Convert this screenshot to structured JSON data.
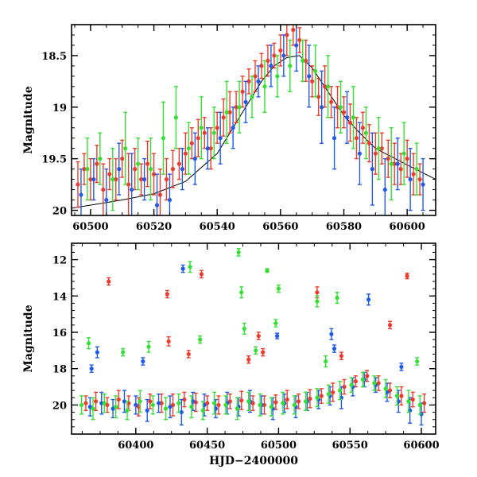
{
  "chart_data": [
    {
      "type": "scatter",
      "title": "",
      "xlabel": "",
      "ylabel": "Magnitude",
      "xlim": [
        60494,
        60609
      ],
      "ylim": [
        20.05,
        18.2
      ],
      "y_inverted": true,
      "x_ticks": [
        60500,
        60520,
        60540,
        60560,
        60580,
        60600
      ],
      "x_tick_labels": [
        "60500",
        "60520",
        "60540",
        "60560",
        "60580",
        "60600"
      ],
      "y_ticks": [
        18.5,
        19,
        19.5,
        20
      ],
      "y_tick_labels": [
        "18.5",
        "19",
        "19.5",
        "20"
      ],
      "model_curve": {
        "color": "#000000",
        "x": [
          60494,
          60500,
          60510,
          60520,
          60530,
          60540,
          60548,
          60554,
          60558,
          60562,
          60566,
          60570,
          60575,
          60580,
          60585,
          60590,
          60600,
          60609
        ],
        "y": [
          19.98,
          19.95,
          19.9,
          19.84,
          19.72,
          19.45,
          19.05,
          18.75,
          18.6,
          18.52,
          18.5,
          18.62,
          18.85,
          19.08,
          19.25,
          19.4,
          19.56,
          19.7
        ]
      },
      "series": [
        {
          "name": "",
          "color": "#ee3b2b",
          "x": [
            60496,
            60498,
            60500,
            60502,
            60504,
            60506,
            60508,
            60510,
            60512,
            60514,
            60516,
            60518,
            60520,
            60522,
            60524,
            60526,
            60528,
            60530,
            60532,
            60534,
            60536,
            60538,
            60540,
            60542,
            60544,
            60546,
            60548,
            60550,
            60552,
            60554,
            60556,
            60558,
            60560,
            60562,
            60564,
            60566,
            60568,
            60570,
            60572,
            60574,
            60576,
            60578,
            60580,
            60582,
            60584,
            60586,
            60588,
            60590,
            60592,
            60594,
            60596,
            60598,
            60600,
            60602,
            60604
          ],
          "y": [
            19.75,
            19.6,
            19.7,
            19.55,
            19.8,
            19.65,
            19.7,
            19.5,
            19.75,
            19.6,
            19.7,
            19.55,
            19.65,
            19.85,
            19.7,
            19.6,
            19.55,
            19.45,
            19.35,
            19.3,
            19.25,
            19.4,
            19.2,
            19.1,
            19.05,
            19.0,
            18.85,
            18.75,
            18.7,
            18.6,
            18.55,
            18.5,
            18.45,
            18.3,
            18.25,
            18.35,
            18.55,
            18.75,
            18.9,
            18.8,
            18.95,
            19.0,
            19.05,
            19.15,
            19.3,
            19.2,
            19.35,
            19.45,
            19.4,
            19.5,
            19.55,
            19.6,
            19.5,
            19.65,
            19.7
          ],
          "err": [
            0.22,
            0.15,
            0.2,
            0.18,
            0.25,
            0.15,
            0.2,
            0.18,
            0.3,
            0.2,
            0.15,
            0.22,
            0.2,
            0.25,
            0.2,
            0.18,
            0.15,
            0.2,
            0.15,
            0.18,
            0.15,
            0.2,
            0.15,
            0.18,
            0.2,
            0.15,
            0.15,
            0.12,
            0.15,
            0.12,
            0.15,
            0.12,
            0.15,
            0.2,
            0.15,
            0.12,
            0.2,
            0.15,
            0.18,
            0.2,
            0.15,
            0.2,
            0.15,
            0.18,
            0.2,
            0.15,
            0.18,
            0.2,
            0.15,
            0.18,
            0.2,
            0.15,
            0.18,
            0.2,
            0.15
          ]
        },
        {
          "name": "",
          "color": "#1f5be8",
          "x": [
            60497,
            60501,
            60505,
            60509,
            60513,
            60517,
            60521,
            60525,
            60529,
            60533,
            60537,
            60541,
            60545,
            60549,
            60553,
            60557,
            60561,
            60565,
            60569,
            60573,
            60577,
            60581,
            60585,
            60589,
            60593,
            60597,
            60601,
            60605
          ],
          "y": [
            19.85,
            19.7,
            19.9,
            19.6,
            19.8,
            19.7,
            19.95,
            19.9,
            19.6,
            19.5,
            19.4,
            19.3,
            19.2,
            18.95,
            18.75,
            18.6,
            18.5,
            18.4,
            18.7,
            19.0,
            19.3,
            19.1,
            19.45,
            19.6,
            19.8,
            19.55,
            19.7,
            19.75
          ],
          "err": [
            0.25,
            0.2,
            0.3,
            0.25,
            0.35,
            0.2,
            0.3,
            0.25,
            0.2,
            0.25,
            0.2,
            0.25,
            0.2,
            0.2,
            0.15,
            0.2,
            0.2,
            0.25,
            0.3,
            0.35,
            0.3,
            0.25,
            0.3,
            0.35,
            0.3,
            0.25,
            0.3,
            0.25
          ]
        },
        {
          "name": "",
          "color": "#33e033",
          "x": [
            60499,
            60503,
            60507,
            60511,
            60515,
            60519,
            60523,
            60527,
            60531,
            60535,
            60539,
            60543,
            60547,
            60551,
            60555,
            60559,
            60563,
            60567,
            60571,
            60575,
            60579,
            60583,
            60587,
            60591,
            60595,
            60599,
            60603
          ],
          "y": [
            19.6,
            19.5,
            19.7,
            19.4,
            19.55,
            19.6,
            19.3,
            19.1,
            19.4,
            19.2,
            19.25,
            19.05,
            19.0,
            18.9,
            18.8,
            18.7,
            18.6,
            18.55,
            18.65,
            18.8,
            19.0,
            19.1,
            19.25,
            19.4,
            19.55,
            19.45,
            19.6
          ],
          "err": [
            0.3,
            0.25,
            0.3,
            0.35,
            0.25,
            0.3,
            0.35,
            0.3,
            0.25,
            0.3,
            0.25,
            0.3,
            0.25,
            0.2,
            0.25,
            0.2,
            0.25,
            0.2,
            0.25,
            0.3,
            0.25,
            0.3,
            0.25,
            0.3,
            0.35,
            0.3,
            0.25
          ]
        }
      ]
    },
    {
      "type": "scatter",
      "title": "",
      "xlabel": "HJD−2400000",
      "ylabel": "Magnitude",
      "xlim": [
        60355,
        60610
      ],
      "ylim": [
        21.6,
        11.1
      ],
      "y_inverted": true,
      "x_ticks": [
        60400,
        60450,
        60500,
        60550,
        60600
      ],
      "x_tick_labels": [
        "60400",
        "60450",
        "60500",
        "60550",
        "60600"
      ],
      "y_ticks": [
        12,
        14,
        16,
        18,
        20
      ],
      "y_tick_labels": [
        "12",
        "14",
        "16",
        "18",
        "20"
      ],
      "series": [
        {
          "name": "",
          "color": "#ee3b2b",
          "x": [
            60365,
            60372,
            60380,
            60388,
            60395,
            60402,
            60410,
            60418,
            60426,
            60434,
            60442,
            60450,
            60458,
            60466,
            60474,
            60482,
            60490,
            60498,
            60506,
            60514,
            60522,
            60530,
            60538,
            60546,
            60554,
            60562,
            60570,
            60578,
            60586,
            60594,
            60602
          ],
          "y": [
            19.9,
            19.8,
            20.0,
            19.7,
            19.9,
            20.1,
            19.8,
            19.9,
            20.0,
            19.7,
            19.85,
            19.9,
            20.0,
            19.8,
            19.75,
            19.9,
            20.0,
            19.85,
            19.7,
            19.8,
            19.65,
            19.5,
            19.3,
            19.0,
            18.7,
            18.4,
            18.8,
            19.2,
            19.5,
            19.7,
            19.9
          ],
          "err": [
            0.4,
            0.5,
            0.4,
            0.5,
            0.4,
            0.5,
            0.4,
            0.5,
            0.6,
            0.4,
            0.5,
            0.4,
            0.5,
            0.4,
            0.5,
            0.4,
            0.5,
            0.4,
            0.5,
            0.4,
            0.5,
            0.4,
            0.5,
            0.4,
            0.3,
            0.3,
            0.4,
            0.4,
            0.5,
            0.4,
            0.5
          ]
        },
        {
          "name": "",
          "color": "#1f5be8",
          "x": [
            60368,
            60376,
            60384,
            60392,
            60400,
            60408,
            60416,
            60424,
            60432,
            60440,
            60448,
            60456,
            60464,
            60472,
            60480,
            60488,
            60496,
            60504,
            60512,
            60520,
            60528,
            60536,
            60544,
            60552,
            60560,
            60568,
            60576,
            60584,
            60592,
            60600
          ],
          "y": [
            20.1,
            19.9,
            20.2,
            19.8,
            20.0,
            20.3,
            19.9,
            20.1,
            20.4,
            19.8,
            20.0,
            20.2,
            19.9,
            20.1,
            19.8,
            20.0,
            20.2,
            19.9,
            20.1,
            19.8,
            19.7,
            19.5,
            19.6,
            19.0,
            18.6,
            18.9,
            19.3,
            19.8,
            20.3,
            20.5
          ],
          "err": [
            0.5,
            0.6,
            0.5,
            0.6,
            0.5,
            0.6,
            0.5,
            0.6,
            0.7,
            0.5,
            0.6,
            0.5,
            0.6,
            0.5,
            0.6,
            0.5,
            0.6,
            0.5,
            0.6,
            0.5,
            0.5,
            0.5,
            0.6,
            0.5,
            0.4,
            0.4,
            0.5,
            0.6,
            0.7,
            0.6
          ]
        },
        {
          "name": "",
          "color": "#33e033",
          "x": [
            60362,
            60370,
            60378,
            60386,
            60394,
            60403,
            60412,
            60421,
            60430,
            60439,
            60447,
            60455,
            60463,
            60471,
            60479,
            60487,
            60495,
            60503,
            60511,
            60519,
            60527,
            60535,
            60543,
            60551,
            60559,
            60567,
            60575,
            60583,
            60591,
            60599
          ],
          "y": [
            20.0,
            20.2,
            19.9,
            20.1,
            20.3,
            19.8,
            20.0,
            20.2,
            19.9,
            20.1,
            20.3,
            19.9,
            20.0,
            20.2,
            19.8,
            20.0,
            20.1,
            19.9,
            20.0,
            19.8,
            19.6,
            19.4,
            19.2,
            18.9,
            18.6,
            18.8,
            19.1,
            19.5,
            19.8,
            20.0
          ],
          "err": [
            0.5,
            0.6,
            0.5,
            0.6,
            0.5,
            0.6,
            0.5,
            0.6,
            0.5,
            0.6,
            0.5,
            0.6,
            0.5,
            0.6,
            0.5,
            0.6,
            0.5,
            0.6,
            0.5,
            0.5,
            0.5,
            0.5,
            0.5,
            0.4,
            0.4,
            0.4,
            0.5,
            0.5,
            0.6,
            0.5
          ]
        },
        {
          "name": "",
          "color": "#ee3b2b",
          "outliers": true,
          "x": [
            60381,
            60422,
            60423,
            60437,
            60446,
            60486,
            60489,
            60527,
            60544,
            60578,
            60590,
            60479
          ],
          "y": [
            13.2,
            13.9,
            16.5,
            17.2,
            12.8,
            16.2,
            17.1,
            13.8,
            17.3,
            15.6,
            12.9,
            17.5
          ],
          "err": [
            0.2,
            0.2,
            0.25,
            0.2,
            0.2,
            0.2,
            0.2,
            0.3,
            0.2,
            0.2,
            0.15,
            0.2
          ]
        },
        {
          "name": "",
          "color": "#1f5be8",
          "outliers": true,
          "x": [
            60369,
            60373,
            60405,
            60433,
            60499,
            60537,
            60539,
            60563,
            60586
          ],
          "y": [
            18.0,
            17.1,
            17.6,
            12.5,
            16.2,
            16.1,
            16.9,
            14.2,
            17.9
          ],
          "err": [
            0.2,
            0.3,
            0.2,
            0.2,
            0.15,
            0.3,
            0.2,
            0.3,
            0.2
          ]
        },
        {
          "name": "",
          "color": "#33e033",
          "outliers": true,
          "x": [
            60367,
            60391,
            60409,
            60438,
            60445,
            60472,
            60474,
            60476,
            60484,
            60492,
            60498,
            60500,
            60527,
            60533,
            60541,
            60597
          ],
          "y": [
            16.6,
            17.1,
            16.8,
            12.4,
            16.4,
            11.6,
            13.8,
            15.8,
            17.0,
            12.6,
            15.5,
            13.6,
            14.3,
            17.6,
            14.1,
            17.6
          ],
          "err": [
            0.3,
            0.2,
            0.3,
            0.3,
            0.2,
            0.2,
            0.3,
            0.3,
            0.2,
            0.1,
            0.2,
            0.2,
            0.3,
            0.3,
            0.3,
            0.2
          ]
        }
      ]
    }
  ]
}
